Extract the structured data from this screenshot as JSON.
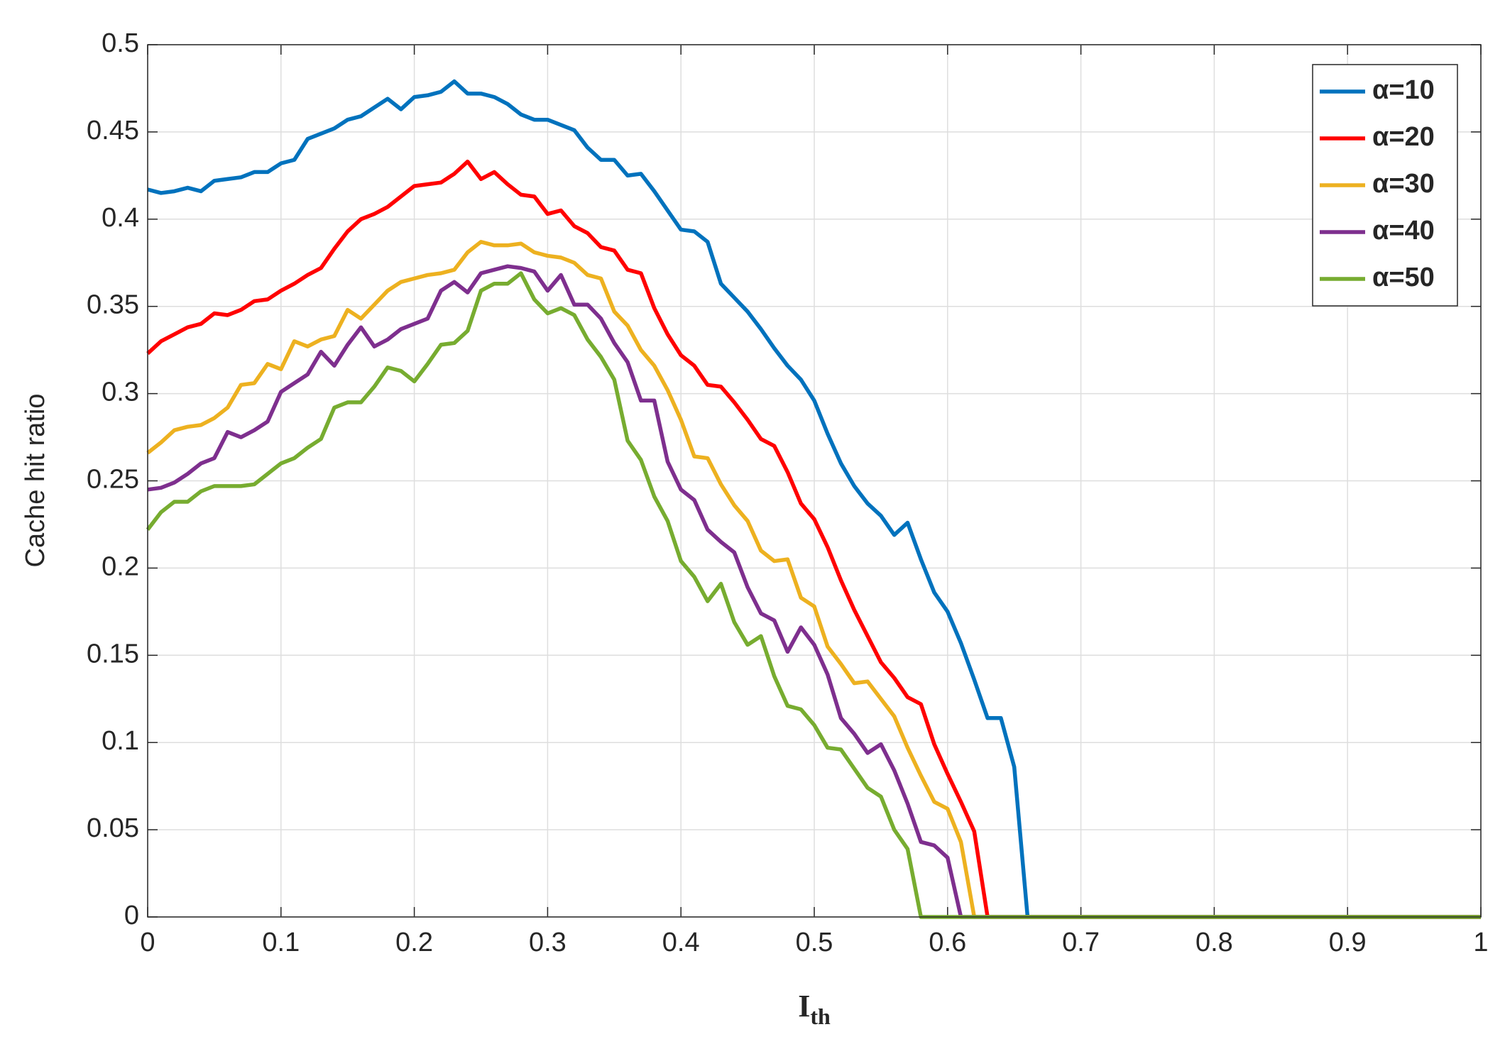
{
  "chart_data": {
    "type": "line",
    "x_label": {
      "main": "I",
      "sub": "th"
    },
    "y_label": "Cache hit ratio",
    "x": [
      0,
      0.01,
      0.02,
      0.03,
      0.04,
      0.05,
      0.06,
      0.07,
      0.08,
      0.09,
      0.1,
      0.11,
      0.12,
      0.13,
      0.14,
      0.15,
      0.16,
      0.17,
      0.18,
      0.19,
      0.2,
      0.21,
      0.22,
      0.23,
      0.24,
      0.25,
      0.26,
      0.27,
      0.28,
      0.29,
      0.3,
      0.31,
      0.32,
      0.33,
      0.34,
      0.35,
      0.36,
      0.37,
      0.38,
      0.39,
      0.4,
      0.41,
      0.42,
      0.43,
      0.44,
      0.45,
      0.46,
      0.47,
      0.48,
      0.49,
      0.5,
      0.51,
      0.52,
      0.53,
      0.54,
      0.55,
      0.56,
      0.57,
      0.58,
      0.59,
      0.6,
      0.61,
      0.62,
      0.63,
      0.64,
      0.65,
      0.66,
      1
    ],
    "series": [
      {
        "name": "α=10",
        "color": "#0072bd",
        "values": [
          0.417,
          0.415,
          0.416,
          0.418,
          0.416,
          0.422,
          0.423,
          0.424,
          0.427,
          0.427,
          0.432,
          0.434,
          0.446,
          0.449,
          0.452,
          0.457,
          0.459,
          0.464,
          0.469,
          0.463,
          0.47,
          0.471,
          0.473,
          0.479,
          0.472,
          0.472,
          0.47,
          0.466,
          0.46,
          0.457,
          0.457,
          0.454,
          0.451,
          0.441,
          0.434,
          0.434,
          0.425,
          0.426,
          0.416,
          0.405,
          0.394,
          0.393,
          0.387,
          0.363,
          0.355,
          0.347,
          0.337,
          0.326,
          0.316,
          0.308,
          0.296,
          0.277,
          0.26,
          0.247,
          0.237,
          0.23,
          0.219,
          0.226,
          0.205,
          0.186,
          0.175,
          0.157,
          0.136,
          0.114,
          0.114,
          0.086,
          0,
          0
        ]
      },
      {
        "name": "α=20",
        "color": "#ff0000",
        "values": [
          0.323,
          0.33,
          0.334,
          0.338,
          0.34,
          0.346,
          0.345,
          0.348,
          0.353,
          0.354,
          0.359,
          0.363,
          0.368,
          0.372,
          0.383,
          0.393,
          0.4,
          0.403,
          0.407,
          0.413,
          0.419,
          0.42,
          0.421,
          0.426,
          0.433,
          0.423,
          0.427,
          0.42,
          0.414,
          0.413,
          0.403,
          0.405,
          0.396,
          0.392,
          0.384,
          0.382,
          0.371,
          0.369,
          0.349,
          0.334,
          0.322,
          0.316,
          0.305,
          0.304,
          0.295,
          0.285,
          0.274,
          0.27,
          0.255,
          0.237,
          0.228,
          0.212,
          0.193,
          0.176,
          0.161,
          0.146,
          0.137,
          0.126,
          0.122,
          0.099,
          0.082,
          0.066,
          0.049,
          0,
          0,
          0,
          0,
          0
        ]
      },
      {
        "name": "α=30",
        "color": "#edb120",
        "values": [
          0.266,
          0.272,
          0.279,
          0.281,
          0.282,
          0.286,
          0.292,
          0.305,
          0.306,
          0.317,
          0.314,
          0.33,
          0.327,
          0.331,
          0.333,
          0.348,
          0.343,
          0.351,
          0.359,
          0.364,
          0.366,
          0.368,
          0.369,
          0.371,
          0.381,
          0.387,
          0.385,
          0.385,
          0.386,
          0.381,
          0.379,
          0.378,
          0.375,
          0.368,
          0.366,
          0.347,
          0.339,
          0.325,
          0.316,
          0.302,
          0.285,
          0.264,
          0.263,
          0.248,
          0.236,
          0.227,
          0.21,
          0.204,
          0.205,
          0.183,
          0.178,
          0.155,
          0.145,
          0.134,
          0.135,
          0.125,
          0.115,
          0.097,
          0.081,
          0.066,
          0.062,
          0.043,
          0,
          0,
          0,
          0,
          0,
          0
        ]
      },
      {
        "name": "α=40",
        "color": "#7e2f8e",
        "values": [
          0.245,
          0.246,
          0.249,
          0.254,
          0.26,
          0.263,
          0.278,
          0.275,
          0.279,
          0.284,
          0.301,
          0.306,
          0.311,
          0.324,
          0.316,
          0.328,
          0.338,
          0.327,
          0.331,
          0.337,
          0.34,
          0.343,
          0.359,
          0.364,
          0.358,
          0.369,
          0.371,
          0.373,
          0.372,
          0.37,
          0.359,
          0.368,
          0.351,
          0.351,
          0.343,
          0.329,
          0.318,
          0.296,
          0.296,
          0.261,
          0.245,
          0.239,
          0.222,
          0.215,
          0.209,
          0.189,
          0.174,
          0.17,
          0.152,
          0.166,
          0.156,
          0.139,
          0.114,
          0.105,
          0.094,
          0.099,
          0.084,
          0.065,
          0.043,
          0.041,
          0.034,
          0,
          0,
          0,
          0,
          0,
          0,
          0
        ]
      },
      {
        "name": "α=50",
        "color": "#77ac30",
        "values": [
          0.222,
          0.232,
          0.238,
          0.238,
          0.244,
          0.247,
          0.247,
          0.247,
          0.248,
          0.254,
          0.26,
          0.263,
          0.269,
          0.274,
          0.292,
          0.295,
          0.295,
          0.304,
          0.315,
          0.313,
          0.307,
          0.317,
          0.328,
          0.329,
          0.336,
          0.359,
          0.363,
          0.363,
          0.369,
          0.354,
          0.346,
          0.349,
          0.345,
          0.331,
          0.321,
          0.308,
          0.273,
          0.262,
          0.241,
          0.227,
          0.204,
          0.195,
          0.181,
          0.191,
          0.169,
          0.156,
          0.161,
          0.138,
          0.121,
          0.119,
          0.11,
          0.097,
          0.096,
          0.085,
          0.074,
          0.069,
          0.05,
          0.039,
          0,
          0,
          0,
          0,
          0,
          0,
          0,
          0,
          0,
          0
        ]
      }
    ],
    "xlim": [
      0,
      1
    ],
    "xticks": [
      0,
      0.1,
      0.2,
      0.3,
      0.4,
      0.5,
      0.6,
      0.7,
      0.8,
      0.9,
      1
    ],
    "ylim": [
      0,
      0.5
    ],
    "yticks": [
      0,
      0.05,
      0.1,
      0.15,
      0.2,
      0.25,
      0.3,
      0.35,
      0.4,
      0.45,
      0.5
    ],
    "grid": true,
    "legend": "upper right"
  }
}
